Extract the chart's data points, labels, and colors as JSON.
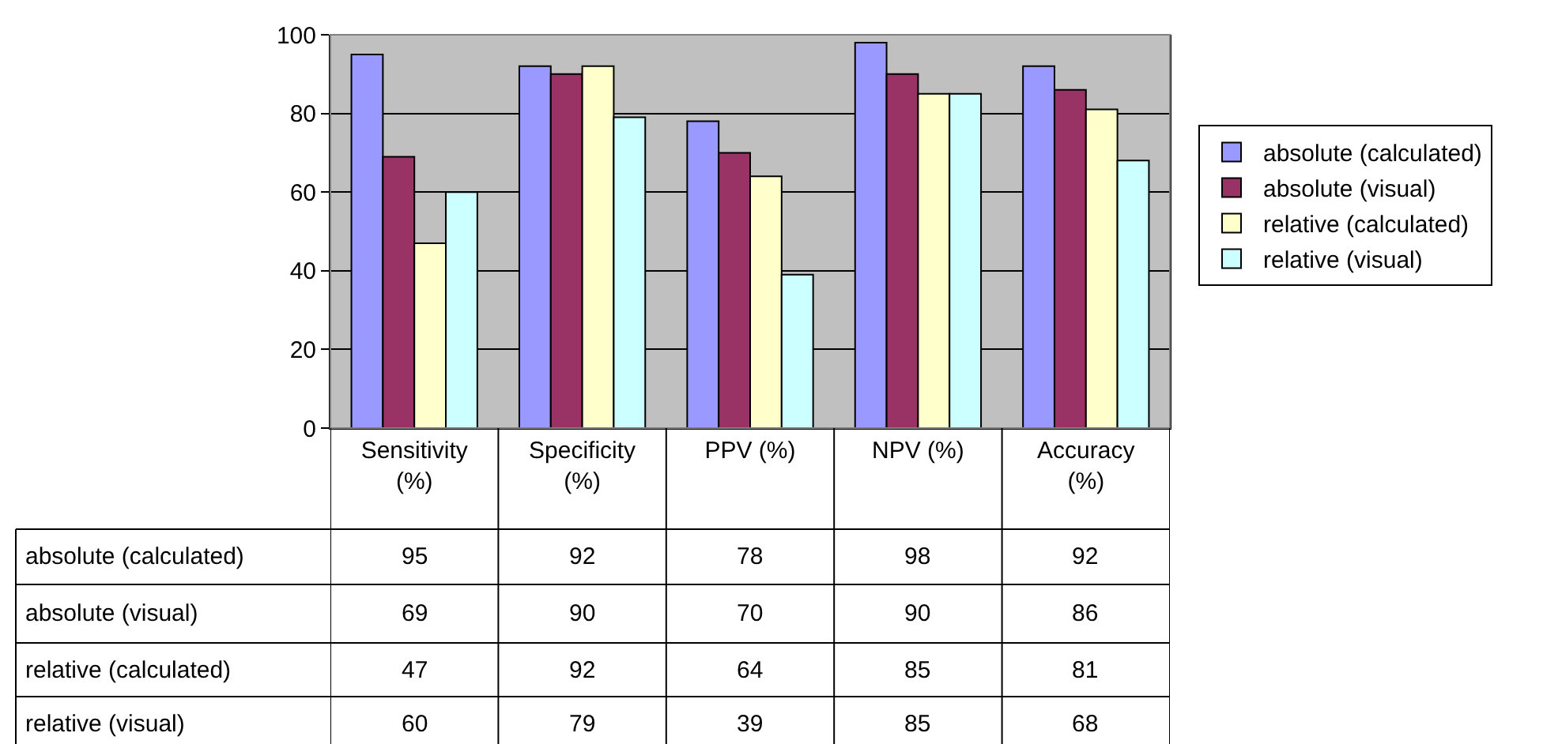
{
  "chart_data": {
    "type": "bar",
    "categories": [
      "Sensitivity (%)",
      "Specificity (%)",
      "PPV (%)",
      "NPV (%)",
      "Accuracy (%)"
    ],
    "series": [
      {
        "name": "absolute (calculated)",
        "color": "#9999ff",
        "values": [
          95,
          92,
          78,
          98,
          92
        ]
      },
      {
        "name": "absolute (visual)",
        "color": "#993366",
        "values": [
          69,
          90,
          70,
          90,
          86
        ]
      },
      {
        "name": "relative (calculated)",
        "color": "#ffffcc",
        "values": [
          47,
          92,
          64,
          85,
          81
        ]
      },
      {
        "name": "relative (visual)",
        "color": "#ccffff",
        "values": [
          60,
          79,
          39,
          85,
          68
        ]
      }
    ],
    "ylim": [
      0,
      100
    ],
    "yticks": [
      0,
      20,
      40,
      60,
      80,
      100
    ],
    "grid": "y",
    "legend": "right",
    "data_labels": true
  }
}
